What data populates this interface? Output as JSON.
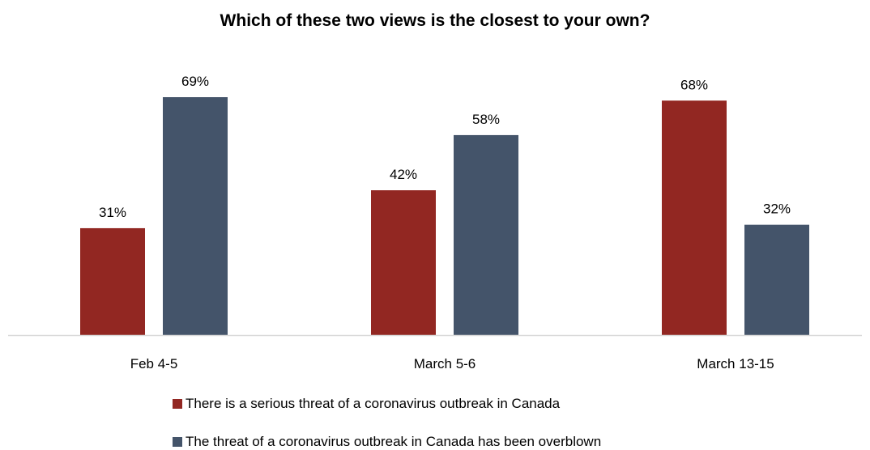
{
  "chart_data": {
    "type": "bar",
    "title": "Which of these two views is the closest to your own?",
    "categories": [
      "Feb 4-5",
      "March 5-6",
      "March 13-15"
    ],
    "series": [
      {
        "name": "There is a serious threat of a coronavirus outbreak in Canada",
        "values": [
          31,
          42,
          68
        ],
        "color": "#922722"
      },
      {
        "name": "The threat of a coronavirus outbreak in Canada has been overblown",
        "values": [
          69,
          58,
          32
        ],
        "color": "#44546a"
      }
    ],
    "value_suffix": "%",
    "ylim": [
      0,
      100
    ],
    "grid": false,
    "legend_position": "bottom"
  }
}
